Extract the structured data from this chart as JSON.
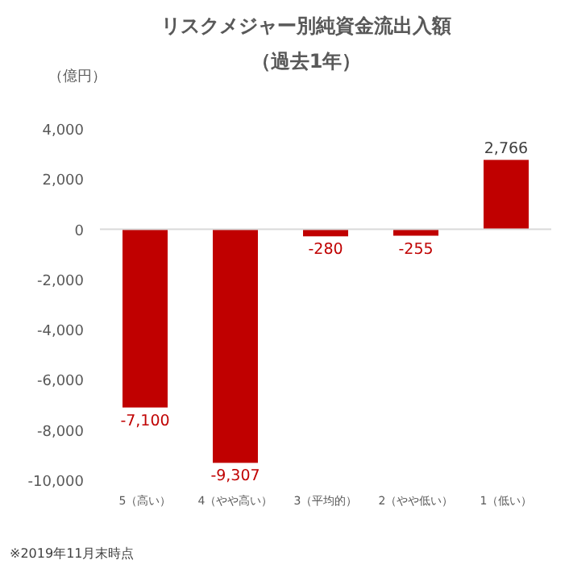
{
  "chart_data": {
    "type": "bar",
    "title": "リスクメジャー別純資金流出入額",
    "subtitle": "（過去1年）",
    "ylabel": "（億円）",
    "categories": [
      "5（高い）",
      "4（やや高い）",
      "3（平均的）",
      "2（やや低い）",
      "1（低い）"
    ],
    "values": [
      -7100,
      -9307,
      -280,
      -255,
      2766
    ],
    "value_labels": [
      "-7,100",
      "-9,307",
      "-280",
      "-255",
      "2,766"
    ],
    "color": "#c00000",
    "ylim": [
      -10000,
      4000
    ],
    "yticks": [
      {
        "value": -10000,
        "label": "-10,000"
      },
      {
        "value": -8000,
        "label": "-8,000"
      },
      {
        "value": -6000,
        "label": "-6,000"
      },
      {
        "value": -4000,
        "label": "-4,000"
      },
      {
        "value": -2000,
        "label": "-2,000"
      },
      0,
      {
        "value": 2000,
        "label": "2,000"
      },
      {
        "value": 4000,
        "label": "4,000"
      }
    ],
    "annotations": [
      "※2019年11月末時点"
    ]
  }
}
